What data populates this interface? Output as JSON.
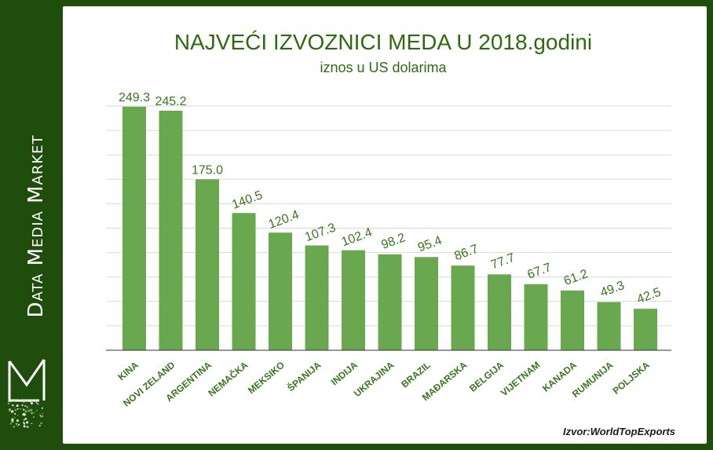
{
  "brand": {
    "name": "Data Media Market"
  },
  "source_note": "Izvor:WorldTopExports",
  "colors": {
    "bar": "#6aa84f",
    "title": "#2e6b10",
    "label": "#38761d",
    "frame": "#1e4d0c"
  },
  "chart_data": {
    "type": "bar",
    "title": "NAJVEĆI IZVOZNICI MEDA U 2018.godini",
    "subtitle": "iznos u US dolarima",
    "xlabel": "",
    "ylabel": "",
    "categories": [
      "KINA",
      "NOVI ZELAND",
      "ARGENTINA",
      "NEMAČKA",
      "MEKSIKO",
      "ŠPANIJA",
      "INDIJA",
      "UKRAJINA",
      "BRAZIL",
      "MAĐARSKA",
      "BELGIJA",
      "VIJETNAM",
      "KANADA",
      "RUMUNIJA",
      "POLJSKA"
    ],
    "values": [
      249.3,
      245.2,
      175.0,
      140.5,
      120.4,
      107.3,
      102.4,
      98.2,
      95.4,
      86.7,
      77.7,
      67.7,
      61.2,
      49.3,
      42.5
    ],
    "value_labels": [
      "249.3",
      "245.2",
      "175.0",
      "140.5",
      "120.4",
      "107.3",
      "102.4",
      "98.2",
      "95.4",
      "86.7",
      "77.7",
      "67.7",
      "61.2",
      "49.3",
      "42.5"
    ],
    "ylim": [
      0,
      250
    ],
    "grid": true,
    "legend": "none"
  }
}
